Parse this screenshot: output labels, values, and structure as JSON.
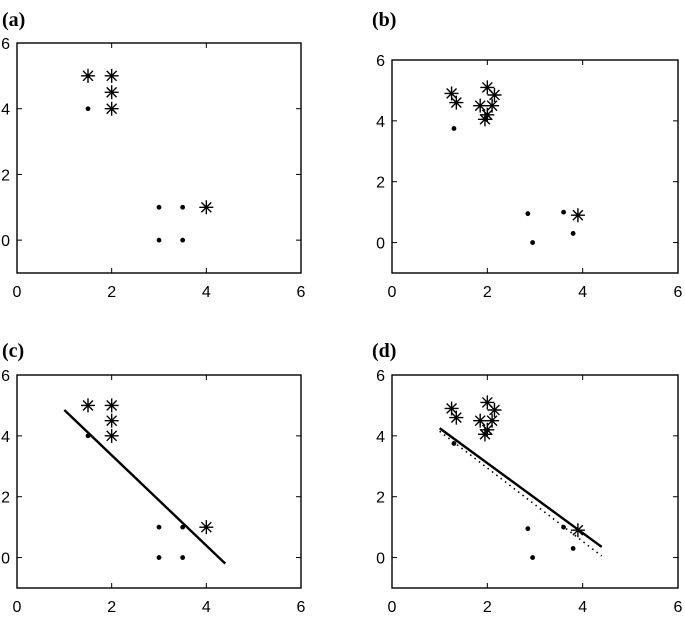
{
  "chart_data": [
    {
      "type": "scatter",
      "panel_label": "(a)",
      "xlim": [
        0,
        6
      ],
      "ylim": [
        -1,
        6
      ],
      "xticks": [
        "0",
        "2",
        "4",
        "6"
      ],
      "yticks": [
        "0",
        "2",
        "4",
        "6"
      ],
      "grid": false,
      "series": [
        {
          "marker": "star",
          "points": [
            [
              1.5,
              5.0
            ],
            [
              2.0,
              5.0
            ],
            [
              2.0,
              4.5
            ],
            [
              2.0,
              4.0
            ],
            [
              4.0,
              1.0
            ]
          ]
        },
        {
          "marker": "dot",
          "points": [
            [
              1.5,
              4.0
            ],
            [
              3.0,
              1.0
            ],
            [
              3.5,
              1.0
            ],
            [
              3.0,
              0.0
            ],
            [
              3.5,
              0.0
            ]
          ]
        }
      ],
      "lines": []
    },
    {
      "type": "scatter",
      "panel_label": "(b)",
      "xlim": [
        0,
        6
      ],
      "ylim": [
        -1,
        6
      ],
      "xticks": [
        "0",
        "2",
        "4",
        "6"
      ],
      "yticks": [
        "0",
        "2",
        "4",
        "6"
      ],
      "grid": false,
      "series": [
        {
          "marker": "star",
          "points": [
            [
              1.25,
              4.9
            ],
            [
              1.35,
              4.6
            ],
            [
              1.85,
              4.5
            ],
            [
              1.95,
              4.05
            ],
            [
              2.0,
              4.2
            ],
            [
              2.0,
              5.1
            ],
            [
              2.1,
              4.5
            ],
            [
              2.15,
              4.85
            ],
            [
              3.9,
              0.9
            ]
          ]
        },
        {
          "marker": "dot",
          "points": [
            [
              1.3,
              3.75
            ],
            [
              2.85,
              0.95
            ],
            [
              2.95,
              0.0
            ],
            [
              3.6,
              1.0
            ],
            [
              3.8,
              0.3
            ]
          ]
        }
      ],
      "lines": []
    },
    {
      "type": "scatter",
      "panel_label": "(c)",
      "xlim": [
        0,
        6
      ],
      "ylim": [
        -1,
        6
      ],
      "xticks": [
        "0",
        "2",
        "4",
        "6"
      ],
      "yticks": [
        "0",
        "2",
        "4",
        "6"
      ],
      "grid": false,
      "series": [
        {
          "marker": "star",
          "points": [
            [
              1.5,
              5.0
            ],
            [
              2.0,
              5.0
            ],
            [
              2.0,
              4.5
            ],
            [
              2.0,
              4.0
            ],
            [
              4.0,
              1.0
            ]
          ]
        },
        {
          "marker": "dot",
          "points": [
            [
              1.5,
              4.0
            ],
            [
              3.0,
              1.0
            ],
            [
              3.5,
              1.0
            ],
            [
              3.0,
              0.0
            ],
            [
              3.5,
              0.0
            ]
          ]
        }
      ],
      "lines": [
        {
          "style": "solid",
          "from": [
            1.0,
            4.85
          ],
          "to": [
            4.4,
            -0.2
          ]
        }
      ]
    },
    {
      "type": "scatter",
      "panel_label": "(d)",
      "xlim": [
        0,
        6
      ],
      "ylim": [
        -1,
        6
      ],
      "xticks": [
        "0",
        "2",
        "4",
        "6"
      ],
      "yticks": [
        "0",
        "2",
        "4",
        "6"
      ],
      "grid": false,
      "series": [
        {
          "marker": "star",
          "points": [
            [
              1.25,
              4.9
            ],
            [
              1.35,
              4.6
            ],
            [
              1.85,
              4.5
            ],
            [
              1.95,
              4.05
            ],
            [
              2.0,
              4.2
            ],
            [
              2.0,
              5.1
            ],
            [
              2.1,
              4.5
            ],
            [
              2.15,
              4.85
            ],
            [
              3.9,
              0.9
            ]
          ]
        },
        {
          "marker": "dot",
          "points": [
            [
              1.3,
              3.75
            ],
            [
              2.85,
              0.95
            ],
            [
              2.95,
              0.0
            ],
            [
              3.6,
              1.0
            ],
            [
              3.8,
              0.3
            ]
          ]
        }
      ],
      "lines": [
        {
          "style": "solid",
          "from": [
            1.0,
            4.25
          ],
          "to": [
            4.4,
            0.35
          ]
        },
        {
          "style": "dotted",
          "from": [
            1.0,
            4.15
          ],
          "to": [
            4.4,
            0.05
          ]
        }
      ]
    }
  ]
}
